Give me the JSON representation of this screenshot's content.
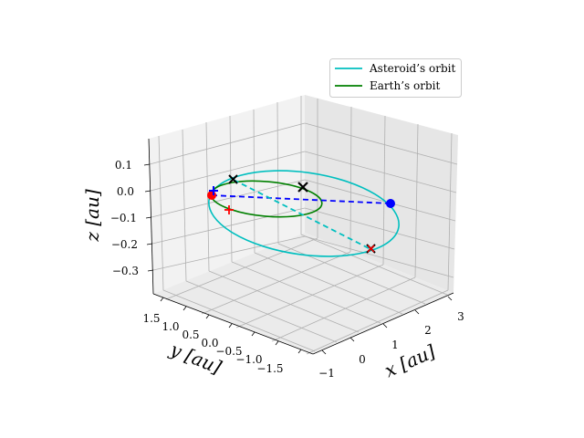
{
  "chart_data": {
    "type": "line3d",
    "xlabel": "x [au]",
    "ylabel": "y [au]",
    "zlabel": "z [au]",
    "x_ticks": [
      "−1",
      "0",
      "1",
      "2",
      "3"
    ],
    "y_ticks": [
      "1.5",
      "1.0",
      "0.5",
      "0.0",
      "−0.5",
      "−1.0",
      "−1.5"
    ],
    "z_ticks": [
      "0.1",
      "0.0",
      "−0.1",
      "−0.2",
      "−0.3"
    ],
    "xlim": [
      -1.3,
      3.3
    ],
    "ylim": [
      -1.6,
      1.7
    ],
    "zlim": [
      -0.38,
      0.18
    ],
    "legend_position": "top-right",
    "series": [
      {
        "name": "Asteroid’s orbit",
        "color": "#00bfbf",
        "a": 2.1,
        "e": 0.51,
        "inclination_deg": 5.3,
        "center": [
          1.0,
          0.2,
          0.0
        ]
      },
      {
        "name": "Earth’s orbit",
        "color": "#008000",
        "a": 1.0,
        "e": 0.017,
        "inclination_deg": 0.0,
        "center": [
          0.0,
          0.0,
          0.0
        ]
      }
    ],
    "markers": {
      "sun": {
        "symbol": "x",
        "color": "#000000",
        "x": 0.0,
        "y": 0.0,
        "z": 0.0
      },
      "departure_asteroid": {
        "symbol": "x",
        "color": "#000000",
        "x": -0.6,
        "y": 1.2,
        "z": 0.05
      },
      "arrival_asteroid": {
        "symbol": "x",
        "color": "#000000",
        "x": 2.9,
        "y": -0.8,
        "z": -0.24
      },
      "earth_blue_start": {
        "symbol": "o",
        "color": "#0000ff",
        "x": 2.8,
        "y": 0.8,
        "z": -0.08
      },
      "earth_red_start": {
        "symbol": "o",
        "color": "#ff0000",
        "x": -0.6,
        "y": 1.6,
        "z": 0.0
      },
      "plus_blue": {
        "symbol": "+",
        "color": "#0000ff",
        "x": -0.5,
        "y": 1.5,
        "z": 0.02
      },
      "plus_red": {
        "symbol": "+",
        "color": "#ff0000",
        "x": -0.1,
        "y": 0.9,
        "z": -0.07
      },
      "plus_red_2": {
        "symbol": "x",
        "color": "#ff0000",
        "x": 2.9,
        "y": -0.8,
        "z": -0.24
      }
    },
    "transfers": [
      {
        "color": "#0000ff",
        "style": "dashed",
        "from": [
          -0.6,
          1.6,
          0.0
        ],
        "to": [
          2.8,
          0.8,
          -0.08
        ]
      },
      {
        "color": "#00bfbf",
        "style": "dashed",
        "from": [
          -0.6,
          1.2,
          0.05
        ],
        "to": [
          2.9,
          -0.8,
          -0.24
        ]
      }
    ]
  }
}
